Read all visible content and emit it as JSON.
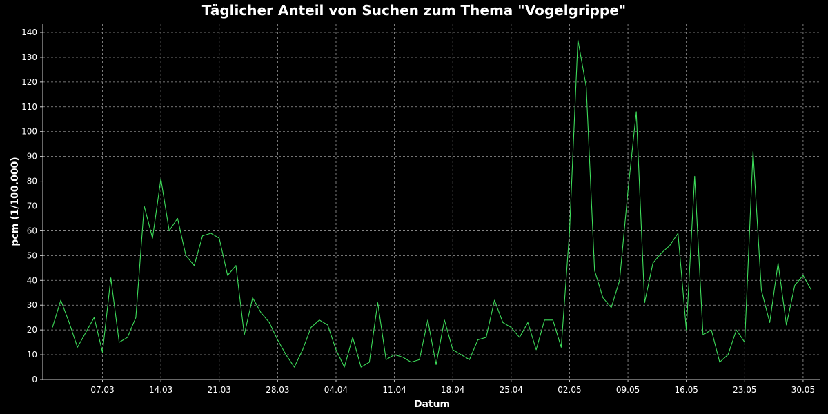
{
  "chart_data": {
    "type": "line",
    "title": "Täglicher Anteil von Suchen zum Thema \"Vogelgrippe\"",
    "xlabel": "Datum",
    "ylabel": "pcm (1/100.000)",
    "ylim": [
      0,
      140
    ],
    "yticks": [
      0,
      10,
      20,
      30,
      40,
      50,
      60,
      70,
      80,
      90,
      100,
      110,
      120,
      130,
      140
    ],
    "xticks": [
      {
        "label": "07.03",
        "index": 6
      },
      {
        "label": "14.03",
        "index": 13
      },
      {
        "label": "21.03",
        "index": 20
      },
      {
        "label": "28.03",
        "index": 27
      },
      {
        "label": "04.04",
        "index": 34
      },
      {
        "label": "11.04",
        "index": 41
      },
      {
        "label": "18.04",
        "index": 48
      },
      {
        "label": "25.04",
        "index": 55
      },
      {
        "label": "02.05",
        "index": 62
      },
      {
        "label": "09.05",
        "index": 69
      },
      {
        "label": "16.05",
        "index": 76
      },
      {
        "label": "23.05",
        "index": 83
      },
      {
        "label": "30.05",
        "index": 90
      }
    ],
    "grid": true,
    "line_color": "#3ddc5a",
    "values": [
      21,
      32,
      23,
      13,
      19,
      25,
      11,
      41,
      15,
      17,
      25,
      70,
      57,
      81,
      60,
      65,
      50,
      46,
      58,
      59,
      57,
      42,
      46,
      18,
      33,
      27,
      23,
      16,
      10,
      5,
      12,
      21,
      24,
      22,
      12,
      5,
      17,
      5,
      7,
      31,
      8,
      10,
      9,
      7,
      8,
      24,
      6,
      24,
      12,
      10,
      8,
      16,
      17,
      32,
      23,
      21,
      17,
      23,
      12,
      24,
      24,
      13,
      60,
      137,
      118,
      44,
      33,
      29,
      40,
      76,
      108,
      31,
      47,
      51,
      54,
      59,
      20,
      82,
      18,
      20,
      7,
      10,
      20,
      15,
      92,
      36,
      23,
      47,
      22,
      38,
      42,
      36
    ]
  }
}
